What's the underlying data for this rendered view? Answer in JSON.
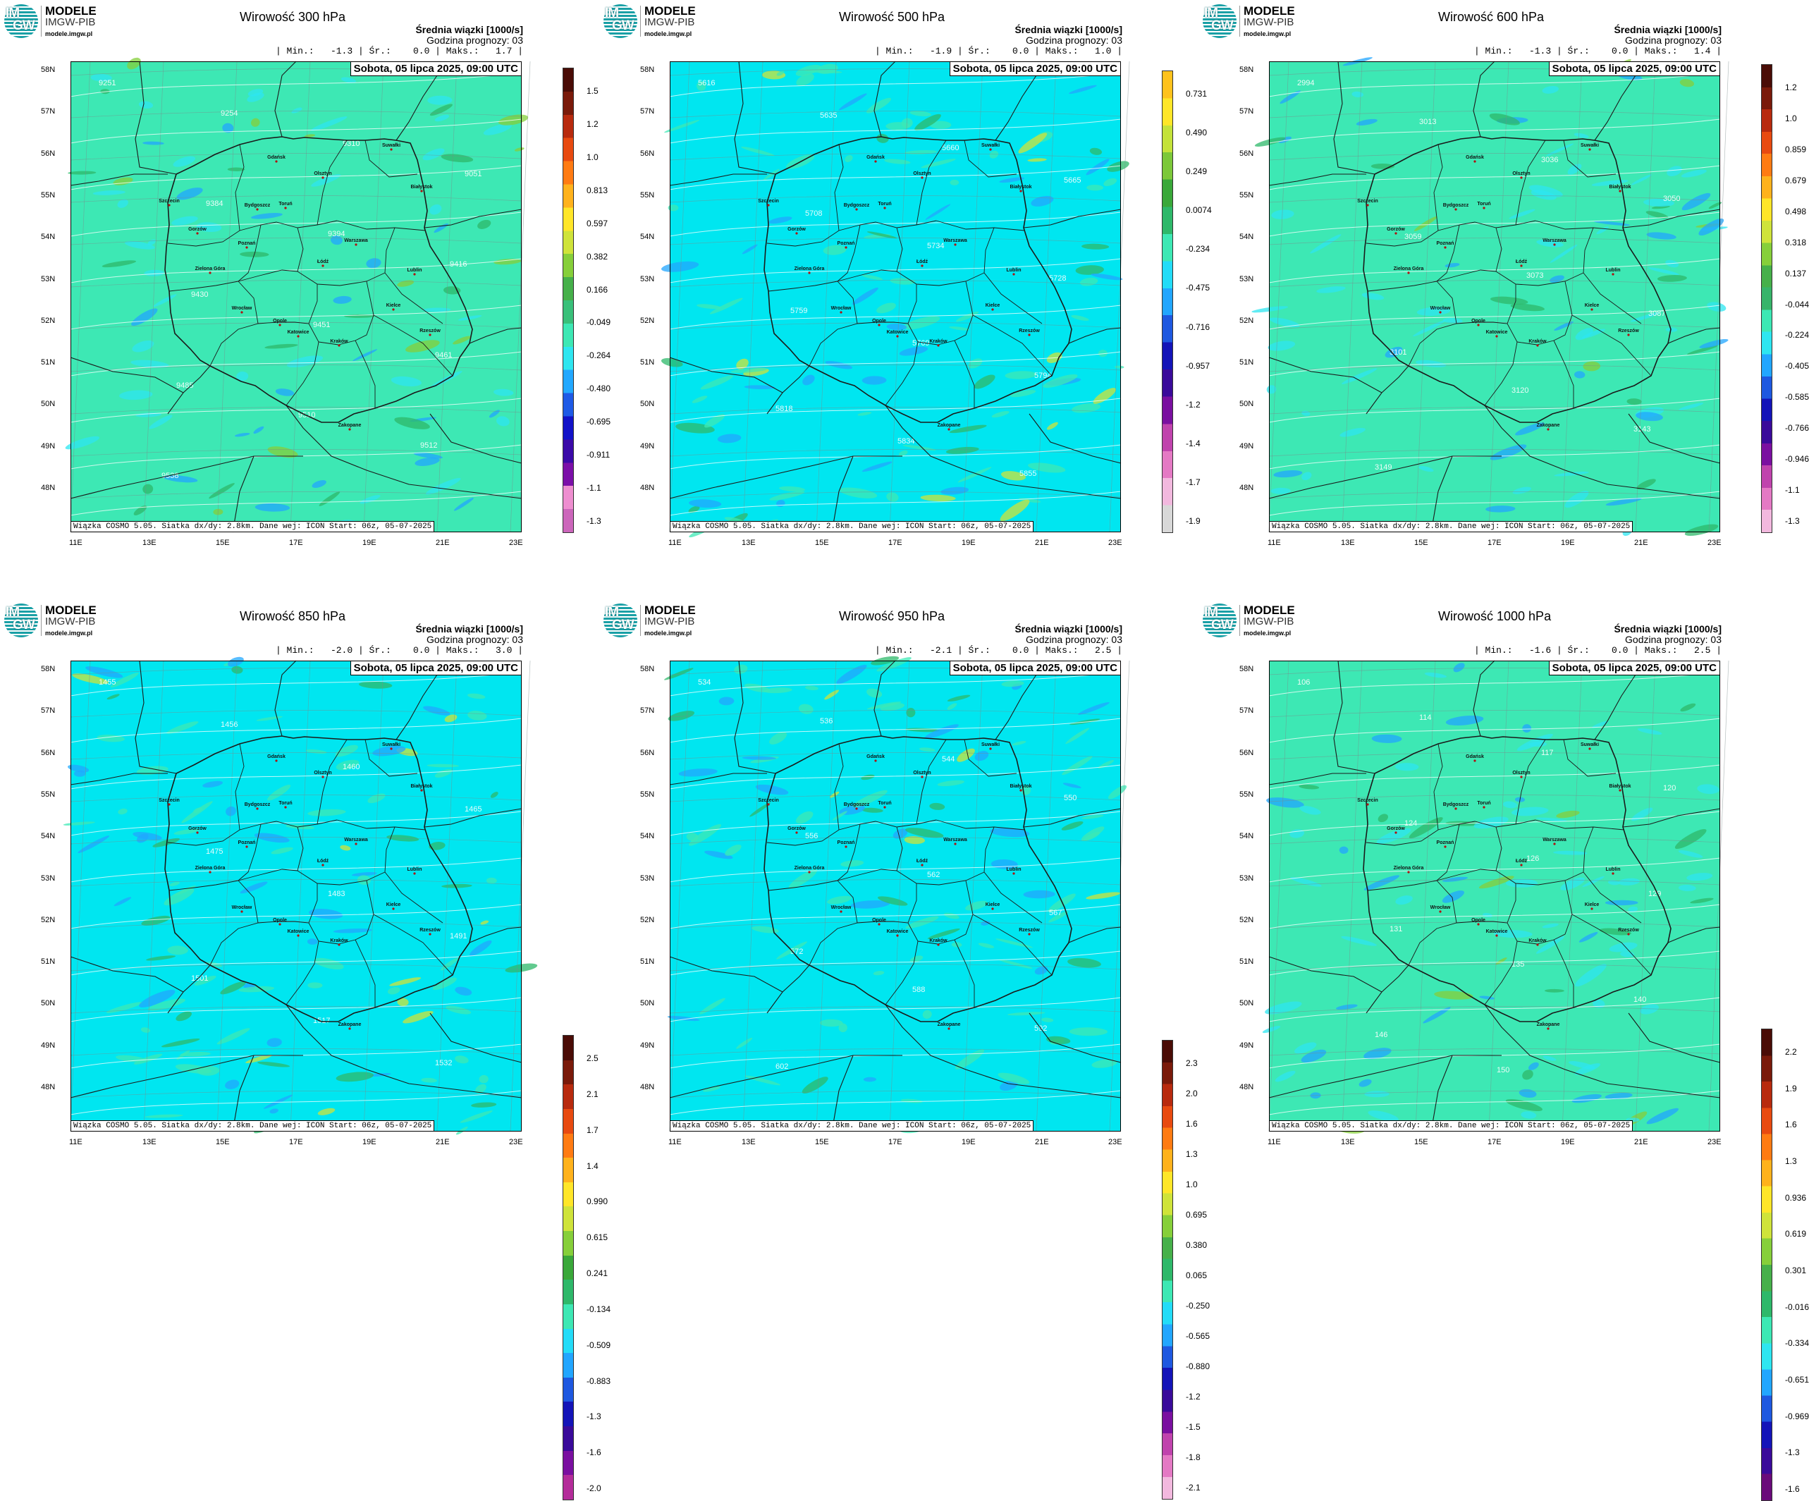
{
  "logo": {
    "letters": [
      "IM",
      "GW"
    ],
    "line1": "MODELE",
    "line2": "IMGW-PIB",
    "line3": "modele.imgw.pl"
  },
  "header_line1": "Średnia wiązki [1000/s]",
  "header_line2": "Godzina prognozy: 03",
  "date_label": "Sobota, 05 lipca 2025, 09:00 UTC",
  "footer_label": "Wiązka COSMO 5.05. Siatka dx/dy: 2.8km. Dane wej: ICON Start: 06z, 05-07-2025",
  "lat_labels": [
    "58N",
    "57N",
    "56N",
    "55N",
    "54N",
    "53N",
    "52N",
    "51N",
    "50N",
    "49N",
    "48N"
  ],
  "lon_labels": [
    "11E",
    "13E",
    "15E",
    "17E",
    "19E",
    "21E",
    "23E"
  ],
  "cities": [
    "Gdańsk",
    "Olsztyn",
    "Białystok",
    "Szczecin",
    "Bydgoszcz",
    "Toruń",
    "Gorzów",
    "Poznań",
    "Warszawa",
    "Zielona Góra",
    "Łódź",
    "Lublin",
    "Wrocław",
    "Kielce",
    "Opole",
    "Katowice",
    "Kraków",
    "Rzeszów",
    "Zakopane",
    "Suwałki"
  ],
  "colors": {
    "map_cyan": "#00e6f0",
    "map_green": "#3de8b4",
    "border": "#1a1a1a",
    "grid": "#7a8a8a"
  },
  "chart_data": [
    {
      "type": "heatmap",
      "title": "Wirowość 300 hPa",
      "stats": "| Min.:   -1.3 | Śr.:    0.0 | Maks.:   1.7 |",
      "background": "green",
      "colorbar_labels": [
        "1.5",
        "1.2",
        "1.0",
        "0.813",
        "0.597",
        "0.382",
        "0.166",
        "-0.049",
        "-0.264",
        "-0.480",
        "-0.695",
        "-0.911",
        "-1.1",
        "-1.3"
      ],
      "contour_labels": [
        "9251",
        "9254",
        "9310",
        "9051",
        "9384",
        "9394",
        "9416",
        "9430",
        "9451",
        "9461",
        "9485",
        "9510",
        "9512",
        "9538"
      ]
    },
    {
      "type": "heatmap",
      "title": "Wirowość 500 hPa",
      "stats": "| Min.:   -1.9 | Śr.:    0.0 | Maks.:   1.0 |",
      "background": "cyan",
      "colorbar_labels": [
        "0.731",
        "0.490",
        "0.249",
        "0.0074",
        "-0.234",
        "-0.475",
        "-0.716",
        "-0.957",
        "-1.2",
        "-1.4",
        "-1.7",
        "-1.9"
      ],
      "contour_labels": [
        "5616",
        "5635",
        "5660",
        "5665",
        "5708",
        "5734",
        "5728",
        "5759",
        "5769",
        "5794",
        "5818",
        "5834",
        "5855"
      ]
    },
    {
      "type": "heatmap",
      "title": "Wirowość 600 hPa",
      "stats": "| Min.:   -1.3 | Śr.:    0.0 | Maks.:   1.4 |",
      "background": "green",
      "colorbar_labels": [
        "1.2",
        "1.0",
        "0.859",
        "0.679",
        "0.498",
        "0.318",
        "0.137",
        "-0.044",
        "-0.224",
        "-0.405",
        "-0.585",
        "-0.766",
        "-0.946",
        "-1.1",
        "-1.3"
      ],
      "contour_labels": [
        "2994",
        "3013",
        "3036",
        "3050",
        "3059",
        "3073",
        "3087",
        "3101",
        "3120",
        "3143",
        "3149"
      ]
    },
    {
      "type": "heatmap",
      "title": "Wirowość 850 hPa",
      "stats": "| Min.:   -2.0 | Śr.:    0.0 | Maks.:   3.0 |",
      "background": "cyan",
      "colorbar_labels": [
        "2.5",
        "2.1",
        "1.7",
        "1.4",
        "0.990",
        "0.615",
        "0.241",
        "-0.134",
        "-0.509",
        "-0.883",
        "-1.3",
        "-1.6",
        "-2.0"
      ],
      "contour_labels": [
        "1455",
        "1456",
        "1460",
        "1465",
        "1475",
        "1483",
        "1491",
        "1501",
        "1517",
        "1532"
      ]
    },
    {
      "type": "heatmap",
      "title": "Wirowość 950 hPa",
      "stats": "| Min.:   -2.1 | Śr.:    0.0 | Maks.:   2.5 |",
      "background": "cyan",
      "colorbar_labels": [
        "2.3",
        "2.0",
        "1.6",
        "1.3",
        "1.0",
        "0.695",
        "0.380",
        "0.065",
        "-0.250",
        "-0.565",
        "-0.880",
        "-1.2",
        "-1.5",
        "-1.8",
        "-2.1"
      ],
      "contour_labels": [
        "534",
        "536",
        "544",
        "550",
        "556",
        "562",
        "567",
        "572",
        "588",
        "592",
        "602"
      ]
    },
    {
      "type": "heatmap",
      "title": "Wirowość 1000 hPa",
      "stats": "| Min.:   -1.6 | Śr.:    0.0 | Maks.:   2.5 |",
      "background": "green",
      "colorbar_labels": [
        "2.2",
        "1.9",
        "1.6",
        "1.3",
        "0.936",
        "0.619",
        "0.301",
        "-0.016",
        "-0.334",
        "-0.651",
        "-0.969",
        "-1.3",
        "-1.6"
      ],
      "contour_labels": [
        "106",
        "114",
        "117",
        "120",
        "124",
        "126",
        "129",
        "131",
        "135",
        "140",
        "146",
        "150"
      ]
    }
  ]
}
